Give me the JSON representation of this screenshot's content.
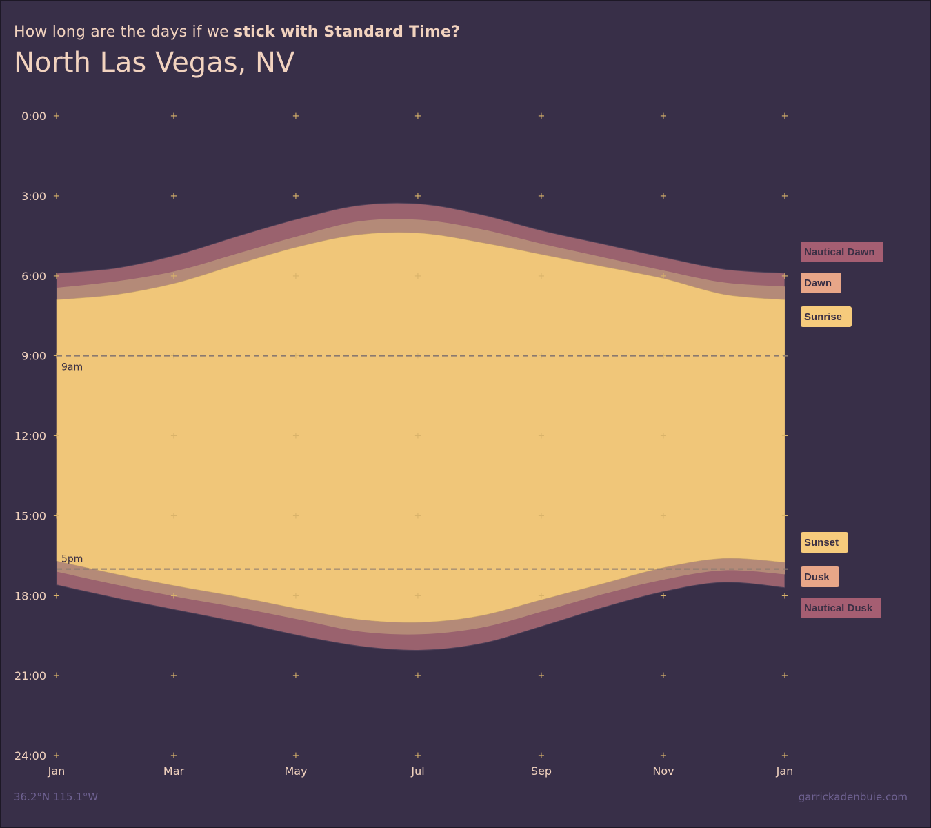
{
  "header": {
    "subtitle_plain": "How long are the days if we",
    "subtitle_bold": "stick with Standard Time?",
    "title": "North Las Vegas, NV"
  },
  "footer": {
    "coords": "36.2°N 115.1°W",
    "credit": "garrickadenbuie.com"
  },
  "colors": {
    "background": "#382f48",
    "day": "#f0c679",
    "civil": "#b48a78",
    "nautical": "#9a626e",
    "grid_mark": "#d9b36a",
    "ref_line": "#8a7a70"
  },
  "chart_data": {
    "type": "area",
    "title": "North Las Vegas, NV",
    "xlabel": "",
    "ylabel": "",
    "ylim": [
      0,
      24
    ],
    "y_reversed": true,
    "y_ticks": [
      0,
      3,
      6,
      9,
      12,
      15,
      18,
      21,
      24
    ],
    "y_tick_labels": [
      "0:00",
      "3:00",
      "6:00",
      "9:00",
      "12:00",
      "15:00",
      "18:00",
      "21:00",
      "24:00"
    ],
    "x_ticks": [
      1,
      3,
      5,
      7,
      9,
      11,
      13
    ],
    "x_tick_labels": [
      "Jan",
      "Mar",
      "May",
      "Jul",
      "Sep",
      "Nov",
      "Jan"
    ],
    "x_unit": "month",
    "x": [
      1,
      2,
      3,
      4,
      5,
      6,
      7,
      8,
      9,
      10,
      11,
      12,
      13
    ],
    "series": [
      {
        "name": "Nautical Dawn",
        "values": [
          5.9,
          5.7,
          5.2,
          4.5,
          3.85,
          3.35,
          3.3,
          3.7,
          4.3,
          4.8,
          5.3,
          5.75,
          5.9
        ]
      },
      {
        "name": "Dawn",
        "values": [
          6.45,
          6.2,
          5.8,
          5.15,
          4.5,
          3.95,
          3.9,
          4.25,
          4.8,
          5.3,
          5.8,
          6.25,
          6.4
        ]
      },
      {
        "name": "Sunrise",
        "values": [
          6.9,
          6.7,
          6.25,
          5.55,
          4.9,
          4.45,
          4.4,
          4.75,
          5.2,
          5.65,
          6.1,
          6.7,
          6.9
        ]
      },
      {
        "name": "Sunset",
        "values": [
          16.7,
          17.2,
          17.65,
          18.05,
          18.5,
          18.9,
          19.0,
          18.75,
          18.15,
          17.55,
          16.95,
          16.6,
          16.75
        ]
      },
      {
        "name": "Dusk",
        "values": [
          17.1,
          17.6,
          18.05,
          18.45,
          18.9,
          19.35,
          19.45,
          19.2,
          18.6,
          17.95,
          17.4,
          17.05,
          17.2
        ]
      },
      {
        "name": "Nautical Dusk",
        "values": [
          17.6,
          18.1,
          18.55,
          19.0,
          19.5,
          19.9,
          20.05,
          19.8,
          19.15,
          18.45,
          17.85,
          17.5,
          17.7
        ]
      }
    ],
    "reference_lines": [
      {
        "y": 9,
        "label": "9am"
      },
      {
        "y": 17,
        "label": "5pm"
      }
    ],
    "legend_position": "right",
    "grid": false
  }
}
